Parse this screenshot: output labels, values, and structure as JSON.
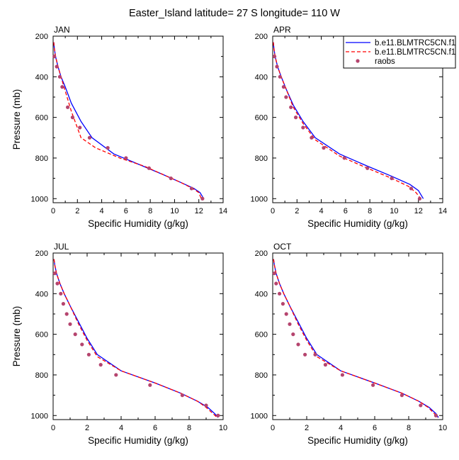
{
  "title": "Easter_Island  latitude= 27 S longitude= 110 W",
  "legend": {
    "placement": "top-right",
    "entries": [
      {
        "label": "b.e11.BLMTRC5CN.f1",
        "color": "#0000ff",
        "style": "solid"
      },
      {
        "label": "b.e11.BLMTRC5CN.f1",
        "color": "#ff0000",
        "style": "dashed"
      },
      {
        "label": "raobs",
        "color": "#b5446e",
        "style": "marker"
      }
    ]
  },
  "chart_data": [
    {
      "type": "line",
      "title": "JAN",
      "xlabel": "Specific Humidity (g/kg)",
      "ylabel": "Pressure (mb)",
      "xlim": [
        0,
        14
      ],
      "ylim": [
        200,
        1020
      ],
      "y_inverted": true,
      "xticks": [
        0,
        2,
        4,
        6,
        8,
        10,
        12,
        14
      ],
      "yticks": [
        200,
        400,
        600,
        800,
        1000
      ],
      "series": [
        {
          "name": "b.e11.BLMTRC5CN.f1",
          "color": "#0000ff",
          "style": "solid",
          "x": [
            0.05,
            0.1,
            0.2,
            0.4,
            0.65,
            1.0,
            1.5,
            2.3,
            3.2,
            5.0,
            7.0,
            9.0,
            10.5,
            11.6,
            12.1,
            12.4
          ],
          "y": [
            230,
            260,
            300,
            350,
            400,
            450,
            530,
            620,
            700,
            780,
            830,
            880,
            920,
            950,
            970,
            1000
          ]
        },
        {
          "name": "b.e11.BLMTRC5CN.f1",
          "color": "#ff0000",
          "style": "dashed",
          "x": [
            0.05,
            0.1,
            0.2,
            0.4,
            0.65,
            1.0,
            1.5,
            2.3,
            3.5,
            5.5,
            7.5,
            9.0,
            10.5,
            11.5,
            12.0,
            12.2
          ],
          "y": [
            230,
            260,
            300,
            350,
            400,
            470,
            570,
            700,
            750,
            800,
            840,
            880,
            920,
            950,
            970,
            1000
          ]
        },
        {
          "name": "raobs",
          "color": "#b5446e",
          "style": "marker",
          "x": [
            0.1,
            0.3,
            0.55,
            0.75,
            1.2,
            1.6,
            2.2,
            3.0,
            4.5,
            6.0,
            7.9,
            9.7,
            11.4,
            12.3
          ],
          "y": [
            300,
            350,
            400,
            450,
            550,
            600,
            650,
            700,
            750,
            800,
            850,
            900,
            950,
            1000
          ]
        }
      ]
    },
    {
      "type": "line",
      "title": "APR",
      "xlabel": "Specific Humidity (g/kg)",
      "ylabel": "",
      "xlim": [
        0,
        14
      ],
      "ylim": [
        200,
        1020
      ],
      "y_inverted": true,
      "xticks": [
        0,
        2,
        4,
        6,
        8,
        10,
        12,
        14
      ],
      "yticks": [
        200,
        400,
        600,
        800,
        1000
      ],
      "series": [
        {
          "name": "b.e11.BLMTRC5CN.f1",
          "color": "#0000ff",
          "style": "solid",
          "x": [
            0.05,
            0.1,
            0.2,
            0.4,
            0.7,
            1.1,
            1.7,
            2.5,
            3.5,
            5.5,
            7.8,
            9.8,
            11.3,
            12.0,
            12.4
          ],
          "y": [
            230,
            260,
            300,
            350,
            400,
            460,
            540,
            620,
            700,
            780,
            840,
            890,
            930,
            960,
            1000
          ]
        },
        {
          "name": "b.e11.BLMTRC5CN.f1",
          "color": "#ff0000",
          "style": "dashed",
          "x": [
            0.05,
            0.1,
            0.2,
            0.4,
            0.7,
            1.1,
            1.7,
            2.5,
            3.5,
            5.5,
            7.8,
            9.8,
            11.2,
            11.8,
            12.2
          ],
          "y": [
            230,
            260,
            300,
            350,
            400,
            460,
            550,
            630,
            710,
            790,
            850,
            900,
            940,
            970,
            1000
          ]
        },
        {
          "name": "raobs",
          "color": "#b5446e",
          "style": "marker",
          "x": [
            0.15,
            0.35,
            0.6,
            0.9,
            1.1,
            1.5,
            1.9,
            2.5,
            3.2,
            4.2,
            5.9,
            7.8,
            9.8,
            11.4,
            12.1
          ],
          "y": [
            300,
            350,
            400,
            450,
            500,
            550,
            600,
            650,
            700,
            750,
            800,
            850,
            900,
            950,
            1000
          ]
        }
      ]
    },
    {
      "type": "line",
      "title": "JUL",
      "xlabel": "Specific Humidity (g/kg)",
      "ylabel": "Pressure (mb)",
      "xlim": [
        0,
        10
      ],
      "ylim": [
        200,
        1020
      ],
      "y_inverted": true,
      "xticks": [
        0,
        2,
        4,
        6,
        8,
        10
      ],
      "yticks": [
        200,
        400,
        600,
        800,
        1000
      ],
      "series": [
        {
          "name": "b.e11.BLMTRC5CN.f1",
          "color": "#0000ff",
          "style": "solid",
          "x": [
            0.05,
            0.1,
            0.2,
            0.4,
            0.65,
            1.0,
            1.5,
            2.0,
            2.6,
            4.0,
            6.0,
            7.5,
            8.5,
            9.1,
            9.5,
            9.7
          ],
          "y": [
            230,
            260,
            300,
            350,
            400,
            460,
            540,
            620,
            700,
            780,
            840,
            890,
            930,
            960,
            990,
            1010
          ]
        },
        {
          "name": "b.e11.BLMTRC5CN.f1",
          "color": "#ff0000",
          "style": "dashed",
          "x": [
            0.05,
            0.1,
            0.2,
            0.4,
            0.65,
            1.0,
            1.5,
            2.0,
            2.6,
            4.0,
            6.0,
            7.5,
            8.5,
            9.0,
            9.4,
            9.65
          ],
          "y": [
            230,
            260,
            300,
            350,
            400,
            460,
            550,
            630,
            710,
            780,
            840,
            890,
            930,
            960,
            990,
            1010
          ]
        },
        {
          "name": "raobs",
          "color": "#b5446e",
          "style": "marker",
          "x": [
            0.1,
            0.25,
            0.45,
            0.6,
            0.8,
            1.0,
            1.3,
            1.7,
            2.1,
            2.8,
            3.7,
            5.7,
            7.6,
            9.0,
            9.7
          ],
          "y": [
            300,
            350,
            400,
            450,
            500,
            550,
            600,
            650,
            700,
            750,
            800,
            850,
            900,
            950,
            1000
          ]
        }
      ]
    },
    {
      "type": "line",
      "title": "OCT",
      "xlabel": "Specific Humidity (g/kg)",
      "ylabel": "",
      "xlim": [
        0,
        10
      ],
      "ylim": [
        200,
        1020
      ],
      "y_inverted": true,
      "xticks": [
        0,
        2,
        4,
        6,
        8,
        10
      ],
      "yticks": [
        200,
        400,
        600,
        800,
        1000
      ],
      "series": [
        {
          "name": "b.e11.BLMTRC5CN.f1",
          "color": "#0000ff",
          "style": "solid",
          "x": [
            0.05,
            0.1,
            0.2,
            0.4,
            0.65,
            1.0,
            1.5,
            2.0,
            2.6,
            4.0,
            6.0,
            7.6,
            8.6,
            9.2,
            9.6,
            9.75
          ],
          "y": [
            230,
            260,
            300,
            350,
            400,
            460,
            540,
            620,
            700,
            780,
            840,
            890,
            930,
            960,
            990,
            1010
          ]
        },
        {
          "name": "b.e11.BLMTRC5CN.f1",
          "color": "#ff0000",
          "style": "dashed",
          "x": [
            0.05,
            0.1,
            0.2,
            0.4,
            0.65,
            1.0,
            1.5,
            2.0,
            2.6,
            4.0,
            6.0,
            7.6,
            8.6,
            9.15,
            9.5,
            9.7
          ],
          "y": [
            230,
            260,
            300,
            350,
            400,
            460,
            550,
            630,
            710,
            780,
            840,
            890,
            930,
            960,
            990,
            1010
          ]
        },
        {
          "name": "raobs",
          "color": "#b5446e",
          "style": "marker",
          "x": [
            0.1,
            0.2,
            0.4,
            0.6,
            0.8,
            1.0,
            1.2,
            1.5,
            1.9,
            2.5,
            3.1,
            4.1,
            5.9,
            7.6,
            8.7,
            9.6
          ],
          "y": [
            300,
            350,
            400,
            450,
            500,
            550,
            600,
            650,
            700,
            700,
            750,
            800,
            850,
            900,
            950,
            1000
          ]
        }
      ]
    }
  ]
}
